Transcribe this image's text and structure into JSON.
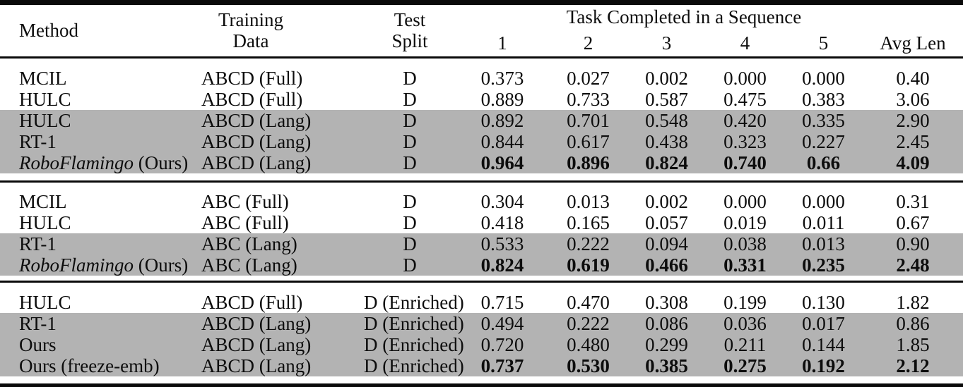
{
  "page": {
    "background_color": "#ffffff",
    "text_color": "#0d0d0d",
    "rule_color": "#0a0a0a",
    "row_highlight_color": "#b3b3b3"
  },
  "header": {
    "method": "Method",
    "training": [
      "Training",
      "Data"
    ],
    "test": [
      "Test",
      "Split"
    ],
    "task_group": "Task Completed in a Sequence",
    "task_numbers": [
      "1",
      "2",
      "3",
      "4",
      "5"
    ],
    "avg": "Avg Len"
  },
  "blocks": [
    {
      "rows": [
        {
          "method": "MCIL",
          "training": "ABCD (Full)",
          "test": "D",
          "values": [
            "0.373",
            "0.027",
            "0.002",
            "0.000",
            "0.000"
          ],
          "avg": "0.40",
          "highlight": false,
          "bold": false
        },
        {
          "method": "HULC",
          "training": "ABCD (Full)",
          "test": "D",
          "values": [
            "0.889",
            "0.733",
            "0.587",
            "0.475",
            "0.383"
          ],
          "avg": "3.06",
          "highlight": false,
          "bold": false
        },
        {
          "method": "HULC",
          "training": "ABCD (Lang)",
          "test": "D",
          "values": [
            "0.892",
            "0.701",
            "0.548",
            "0.420",
            "0.335"
          ],
          "avg": "2.90",
          "highlight": true,
          "bold": false
        },
        {
          "method": "RT-1",
          "training": "ABCD (Lang)",
          "test": "D",
          "values": [
            "0.844",
            "0.617",
            "0.438",
            "0.323",
            "0.227"
          ],
          "avg": "2.45",
          "highlight": true,
          "bold": false
        },
        {
          "method_em": "RoboFlamingo",
          "method": " (Ours)",
          "training": "ABCD (Lang)",
          "test": "D",
          "values": [
            "0.964",
            "0.896",
            "0.824",
            "0.740",
            "0.66"
          ],
          "avg": "4.09",
          "highlight": true,
          "bold": true
        }
      ]
    },
    {
      "rows": [
        {
          "method": "MCIL",
          "training": "ABC (Full)",
          "test": "D",
          "values": [
            "0.304",
            "0.013",
            "0.002",
            "0.000",
            "0.000"
          ],
          "avg": "0.31",
          "highlight": false,
          "bold": false
        },
        {
          "method": "HULC",
          "training": "ABC (Full)",
          "test": "D",
          "values": [
            "0.418",
            "0.165",
            "0.057",
            "0.019",
            "0.011"
          ],
          "avg": "0.67",
          "highlight": false,
          "bold": false
        },
        {
          "method": "RT-1",
          "training": "ABC (Lang)",
          "test": "D",
          "values": [
            "0.533",
            "0.222",
            "0.094",
            "0.038",
            "0.013"
          ],
          "avg": "0.90",
          "highlight": true,
          "bold": false
        },
        {
          "method_em": "RoboFlamingo",
          "method": " (Ours)",
          "training": "ABC (Lang)",
          "test": "D",
          "values": [
            "0.824",
            "0.619",
            "0.466",
            "0.331",
            "0.235"
          ],
          "avg": "2.48",
          "highlight": true,
          "bold": true
        }
      ]
    },
    {
      "rows": [
        {
          "method": "HULC",
          "training": "ABCD (Full)",
          "test": "D (Enriched)",
          "values": [
            "0.715",
            "0.470",
            "0.308",
            "0.199",
            "0.130"
          ],
          "avg": "1.82",
          "highlight": false,
          "bold": false
        },
        {
          "method": "RT-1",
          "training": "ABCD (Lang)",
          "test": "D (Enriched)",
          "values": [
            "0.494",
            "0.222",
            "0.086",
            "0.036",
            "0.017"
          ],
          "avg": "0.86",
          "highlight": true,
          "bold": false
        },
        {
          "method": "Ours",
          "training": "ABCD (Lang)",
          "test": "D (Enriched)",
          "values": [
            "0.720",
            "0.480",
            "0.299",
            "0.211",
            "0.144"
          ],
          "avg": "1.85",
          "highlight": true,
          "bold": false
        },
        {
          "method": "Ours (freeze-emb)",
          "training": "ABCD (Lang)",
          "test": "D (Enriched)",
          "values": [
            "0.737",
            "0.530",
            "0.385",
            "0.275",
            "0.192"
          ],
          "avg": "2.12",
          "highlight": true,
          "bold": true
        }
      ]
    }
  ]
}
